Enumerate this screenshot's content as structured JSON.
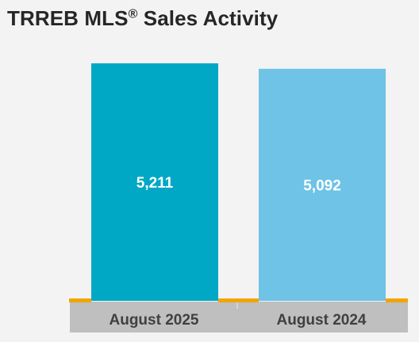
{
  "title": {
    "main": "TRREB MLS",
    "registered": "®",
    "rest": " Sales Activity"
  },
  "colors": {
    "background": "#f3f3f3",
    "title": "#262626",
    "bar_current": "#00a8c5",
    "bar_previous": "#6ec3e6",
    "baseline": "#f2a500",
    "category_band": "#bfbfbf",
    "category_text": "#404040",
    "value_label": "#ffffff"
  },
  "chart_data": {
    "type": "bar",
    "title": "TRREB MLS® Sales Activity",
    "categories": [
      "August 2025",
      "August 2024"
    ],
    "values": [
      5211,
      5092
    ],
    "value_labels": [
      "5,211",
      "5,092"
    ],
    "ylim": [
      0,
      5300
    ],
    "grid": false,
    "legend": "none"
  }
}
